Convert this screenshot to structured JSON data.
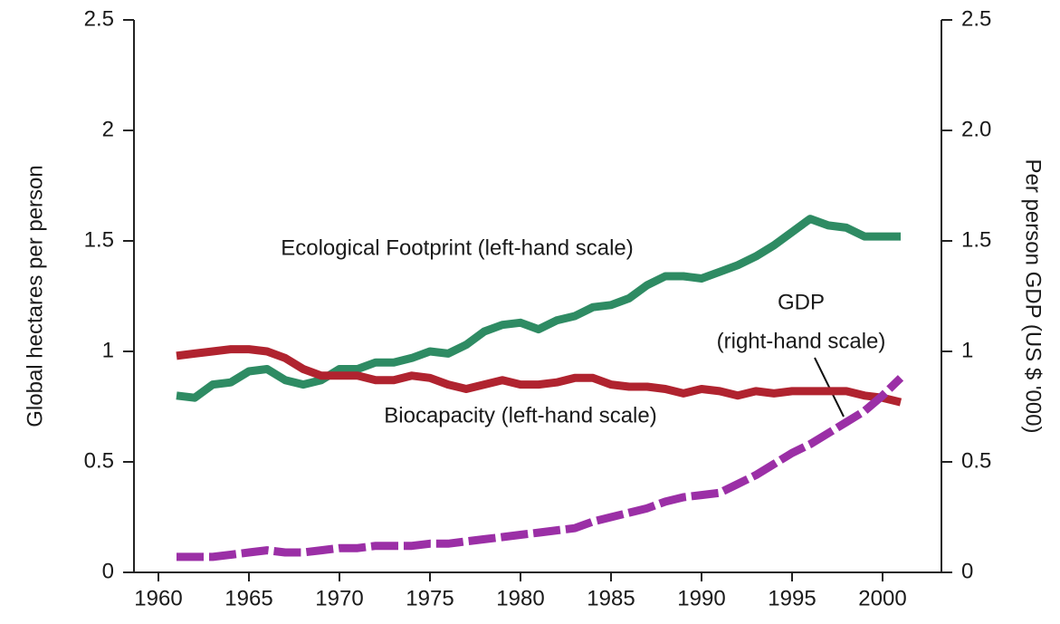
{
  "chart_data": {
    "type": "line",
    "x": [
      1961,
      1962,
      1963,
      1964,
      1965,
      1966,
      1967,
      1968,
      1969,
      1970,
      1971,
      1972,
      1973,
      1974,
      1975,
      1976,
      1977,
      1978,
      1979,
      1980,
      1981,
      1982,
      1983,
      1984,
      1985,
      1986,
      1987,
      1988,
      1989,
      1990,
      1991,
      1992,
      1993,
      1994,
      1995,
      1996,
      1997,
      1998,
      1999,
      2000,
      2001
    ],
    "xlim": [
      1958.65,
      2003.25
    ],
    "xticks": [
      1960,
      1965,
      1970,
      1975,
      1980,
      1985,
      1990,
      1995,
      2000
    ],
    "ylim": [
      0,
      2.5
    ],
    "yticks": [
      0,
      0.5,
      1,
      1.5,
      2,
      2.5
    ],
    "y2lim": [
      0,
      2.5
    ],
    "y2ticks": [
      0,
      0.5,
      1,
      1.5,
      {
        "value": 2,
        "label": "2.0"
      },
      2.5
    ],
    "ylabel": "Global hectares per person",
    "y2label": "Per person GDP (US $ '000)",
    "series": [
      {
        "name": "Ecological Footprint (left-hand scale)",
        "color": "#2e8b63",
        "values": [
          0.8,
          0.79,
          0.85,
          0.86,
          0.91,
          0.92,
          0.87,
          0.85,
          0.87,
          0.92,
          0.92,
          0.95,
          0.95,
          0.97,
          1.0,
          0.99,
          1.03,
          1.09,
          1.12,
          1.13,
          1.1,
          1.14,
          1.16,
          1.2,
          1.21,
          1.24,
          1.3,
          1.34,
          1.34,
          1.33,
          1.36,
          1.39,
          1.43,
          1.48,
          1.54,
          1.6,
          1.57,
          1.56,
          1.52,
          1.52,
          1.52
        ]
      },
      {
        "name": "Biocapacity (left-hand scale)",
        "color": "#b0232f",
        "values": [
          0.98,
          0.99,
          1.0,
          1.01,
          1.01,
          1.0,
          0.97,
          0.92,
          0.89,
          0.89,
          0.89,
          0.87,
          0.87,
          0.89,
          0.88,
          0.85,
          0.83,
          0.85,
          0.87,
          0.85,
          0.85,
          0.86,
          0.88,
          0.88,
          0.85,
          0.84,
          0.84,
          0.83,
          0.81,
          0.83,
          0.82,
          0.8,
          0.82,
          0.81,
          0.82,
          0.82,
          0.82,
          0.82,
          0.8,
          0.79,
          0.77
        ]
      },
      {
        "name": "GDP",
        "color": "#9b2fa6",
        "axis": "y2",
        "dashed": true,
        "values": [
          0.07,
          0.07,
          0.07,
          0.08,
          0.09,
          0.1,
          0.09,
          0.09,
          0.1,
          0.11,
          0.11,
          0.12,
          0.12,
          0.12,
          0.13,
          0.13,
          0.14,
          0.15,
          0.16,
          0.17,
          0.18,
          0.19,
          0.2,
          0.23,
          0.25,
          0.27,
          0.29,
          0.32,
          0.34,
          0.35,
          0.36,
          0.4,
          0.44,
          0.49,
          0.54,
          0.58,
          0.63,
          0.68,
          0.73,
          0.8,
          0.88
        ]
      }
    ],
    "annotations": [
      "(right-hand scale)"
    ]
  }
}
